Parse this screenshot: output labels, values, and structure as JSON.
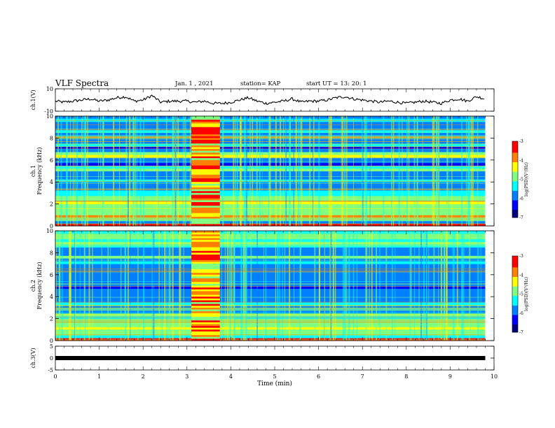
{
  "header": {
    "title": "VLF Spectra",
    "date": "Jan. 1 , 2021",
    "station": "station= KAP",
    "start": "start UT = 13: 20: 1"
  },
  "colors": {
    "cmap": [
      "#000080",
      "#0000ff",
      "#0080ff",
      "#00ffff",
      "#80ff80",
      "#ffff00",
      "#ff8000",
      "#ff0000",
      "#ffffff"
    ]
  },
  "chart_data": [
    {
      "type": "line",
      "ylabel": "ch.1(V)",
      "ylim": [
        -10,
        10
      ],
      "yticks": [
        "10",
        "-10"
      ],
      "xlim": [
        0,
        10
      ],
      "series": [
        {
          "x": [
            0,
            0.2,
            0.4,
            0.6,
            0.8,
            1.0,
            1.2,
            1.4,
            1.6,
            1.8,
            2.0,
            2.2,
            2.4,
            2.6,
            2.8,
            3.0,
            3.2,
            3.4,
            3.6,
            3.8,
            4.0,
            4.2,
            4.4,
            4.6,
            4.8,
            5.0,
            5.2,
            5.4,
            5.6,
            5.8,
            6.0,
            6.2,
            6.4,
            6.6,
            6.8,
            7.0,
            7.2,
            7.4,
            7.6,
            7.8,
            8.0,
            8.2,
            8.4,
            8.6,
            8.8,
            9.0,
            9.2,
            9.4,
            9.6,
            9.8
          ],
          "values": [
            -1,
            -2,
            -1,
            0,
            1,
            -1,
            0,
            2,
            3,
            -1,
            0,
            4,
            -2,
            -1,
            -1,
            -1,
            -2,
            -1,
            -3,
            -3,
            -2,
            0,
            2,
            -1,
            -3,
            -2,
            -1,
            1,
            -2,
            -1,
            -1,
            0,
            2,
            3,
            1,
            0,
            -1,
            -2,
            -1,
            -2,
            -3,
            -2,
            -1,
            -2,
            -3,
            0,
            1,
            -1,
            3,
            1
          ]
        }
      ]
    },
    {
      "type": "heatmap",
      "ylabel": "ch.1\nFrequency (kHz)",
      "ylim": [
        0,
        10
      ],
      "yticks": [
        "0",
        "2",
        "4",
        "6",
        "8",
        "10"
      ],
      "xlim": [
        0,
        10
      ],
      "colorbar": {
        "label": "log(PSD)(V²/Hz)",
        "range": [
          -7,
          -3
        ],
        "ticks": [
          "-3",
          "-4",
          "-5",
          "-6",
          "-7"
        ]
      },
      "band_levels": [
        0.9,
        0.25,
        0.55,
        0.75,
        0.55,
        0.6,
        0.5,
        0.55,
        0.7,
        0.55,
        0.6,
        0.45,
        0.4,
        0.35,
        0.25,
        0.3,
        0.4,
        0.3,
        0.35,
        0.25,
        0.5,
        0.4,
        0.2,
        0.3,
        0.25,
        0.65,
        0.6,
        0.25,
        0.2,
        0.4,
        0.3,
        0.25,
        0.75,
        0.3,
        0.45,
        0.3,
        0.25,
        0.3,
        0.45,
        0.35
      ],
      "burst_interval_min": [
        3.1,
        3.75
      ]
    },
    {
      "type": "heatmap",
      "ylabel": "ch.2\nFrequency (kHz)",
      "ylim": [
        0,
        10
      ],
      "yticks": [
        "0",
        "2",
        "4",
        "6",
        "8",
        "10"
      ],
      "xlim": [
        0,
        10
      ],
      "colorbar": {
        "label": "log(PSD)(V²/Hz)",
        "range": [
          -7,
          -3
        ],
        "ticks": [
          "-3",
          "-4",
          "-5",
          "-6",
          "-7"
        ]
      },
      "band_levels": [
        0.9,
        0.4,
        0.6,
        0.55,
        0.7,
        0.55,
        0.5,
        0.6,
        0.45,
        0.5,
        0.3,
        0.4,
        0.35,
        0.45,
        0.3,
        0.25,
        0.35,
        0.3,
        0.25,
        0.2,
        0.3,
        0.3,
        0.25,
        0.3,
        0.25,
        0.3,
        0.35,
        0.3,
        0.4,
        0.35,
        0.5,
        0.35,
        0.3,
        0.35,
        0.4,
        0.5,
        0.45,
        0.5,
        0.5,
        0.4
      ],
      "burst_interval_min": [
        3.1,
        3.75
      ]
    },
    {
      "type": "line",
      "ylabel": "ch.3(V)",
      "ylim": [
        -5,
        5
      ],
      "yticks": [
        "5",
        "0",
        "-5"
      ],
      "xlim": [
        0,
        10
      ],
      "series": [
        {
          "x": [
            0,
            9.8
          ],
          "values": [
            0,
            0
          ]
        }
      ]
    }
  ],
  "xaxis": {
    "label": "Time (min)",
    "ticks": [
      "0",
      "1",
      "2",
      "3",
      "4",
      "5",
      "6",
      "7",
      "8",
      "9",
      "10"
    ]
  }
}
